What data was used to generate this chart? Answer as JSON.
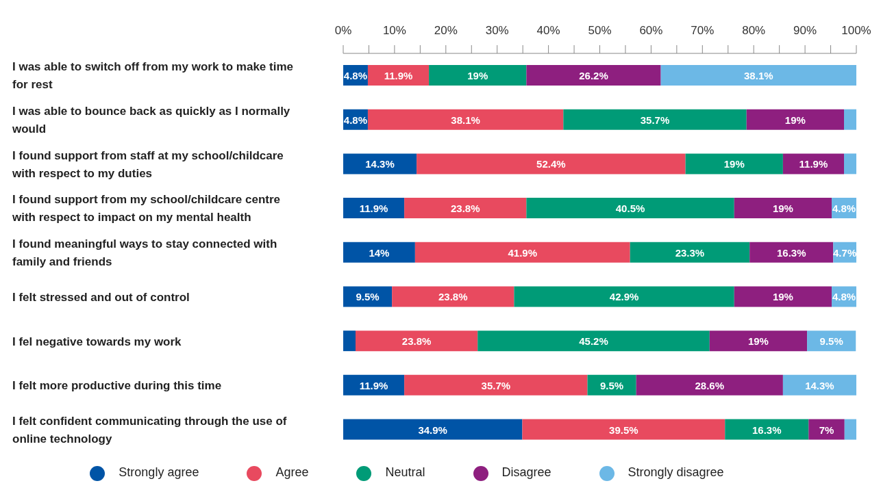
{
  "chart_data": {
    "type": "bar",
    "orientation": "horizontal",
    "stacked": true,
    "categories": [
      "I was able to switch off from my work to make time for rest",
      "I was able to bounce back as quickly as I normally would",
      "I found support from staff at my school/childcare with respect to my duties",
      "I found support from my school/childcare centre with respect to impact on my mental health",
      "I found meaningful ways to stay connected with family and friends",
      "I felt stressed and out of control",
      "I fel negative towards my work",
      "I felt more productive during this time",
      "I felt confident communicating through the use of online technology"
    ],
    "series": [
      {
        "name": "Strongly agree",
        "color": "#0054a6",
        "values": [
          4.8,
          4.8,
          14.3,
          11.9,
          14,
          9.5,
          2.4,
          11.9,
          34.9
        ],
        "value_labels": [
          "4.8%",
          "4.8%",
          "14.3%",
          "11.9%",
          "14%",
          "9.5%",
          null,
          "11.9%",
          "34.9%"
        ]
      },
      {
        "name": "Agree",
        "color": "#e84a5f",
        "values": [
          11.9,
          38.1,
          52.4,
          23.8,
          41.9,
          23.8,
          23.8,
          35.7,
          39.5
        ],
        "value_labels": [
          "11.9%",
          "38.1%",
          "52.4%",
          "23.8%",
          "41.9%",
          "23.8%",
          "23.8%",
          "35.7%",
          "39.5%"
        ]
      },
      {
        "name": "Neutral",
        "color": "#009b77",
        "values": [
          19,
          35.7,
          19,
          40.5,
          23.3,
          42.9,
          45.2,
          9.5,
          16.3
        ],
        "value_labels": [
          "19%",
          "35.7%",
          "19%",
          "40.5%",
          "23.3%",
          "42.9%",
          "45.2%",
          "9.5%",
          "16.3%"
        ]
      },
      {
        "name": "Disagree",
        "color": "#8e1f7f",
        "values": [
          26.2,
          19,
          11.9,
          19,
          16.3,
          19,
          19,
          28.6,
          7
        ],
        "value_labels": [
          "26.2%",
          "19%",
          "11.9%",
          "19%",
          "16.3%",
          "19%",
          "19%",
          "28.6%",
          "7%"
        ]
      },
      {
        "name": "Strongly disagree",
        "color": "#6cb8e6",
        "values": [
          38.1,
          2.4,
          2.4,
          4.8,
          4.7,
          4.8,
          9.5,
          14.3,
          2.3
        ],
        "value_labels": [
          "38.1%",
          null,
          null,
          "4.8%",
          "4.7%",
          "4.8%",
          "9.5%",
          "14.3%",
          null
        ]
      }
    ],
    "xlim": [
      0,
      100
    ],
    "xticks": [
      {
        "value": 0,
        "label": "0%"
      },
      {
        "value": 5,
        "label": null
      },
      {
        "value": 10,
        "label": "10%"
      },
      {
        "value": 15,
        "label": null
      },
      {
        "value": 20,
        "label": "20%"
      },
      {
        "value": 25,
        "label": null
      },
      {
        "value": 30,
        "label": "30%"
      },
      {
        "value": 35,
        "label": null
      },
      {
        "value": 40,
        "label": "40%"
      },
      {
        "value": 45,
        "label": null
      },
      {
        "value": 50,
        "label": "50%"
      },
      {
        "value": 55,
        "label": null
      },
      {
        "value": 60,
        "label": "60%"
      },
      {
        "value": 65,
        "label": null
      },
      {
        "value": 70,
        "label": "70%"
      },
      {
        "value": 75,
        "label": null
      },
      {
        "value": 80,
        "label": "80%"
      },
      {
        "value": 85,
        "label": null
      },
      {
        "value": 90,
        "label": "90%"
      },
      {
        "value": 95,
        "label": null
      },
      {
        "value": 100,
        "label": "100%"
      }
    ],
    "grid": false,
    "legend": "bottom"
  }
}
